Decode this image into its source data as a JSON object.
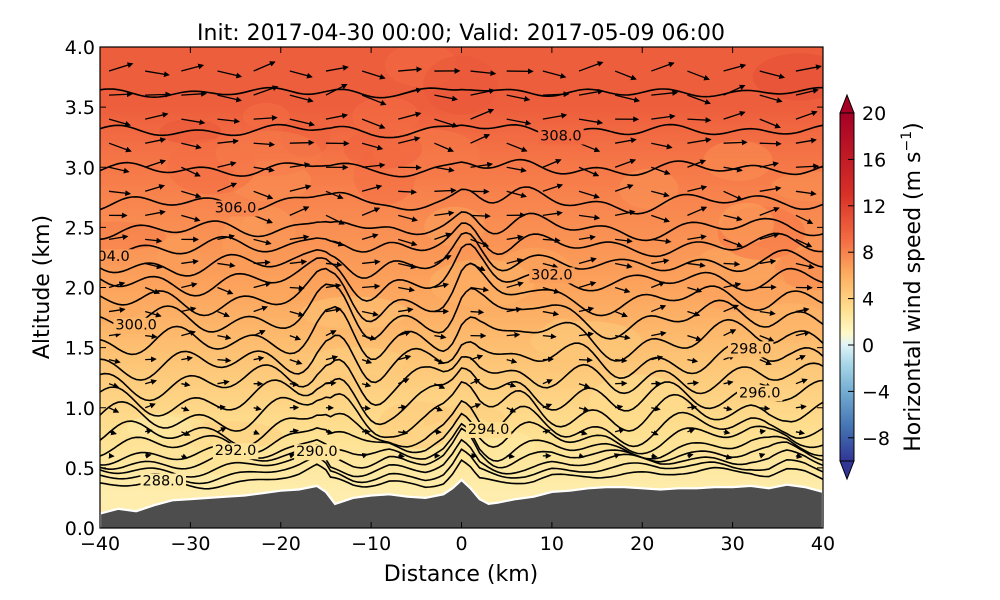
{
  "chart_data": {
    "type": "contour",
    "title": "Init: 2017-04-30 00:00; Valid: 2017-05-09 06:00",
    "xlabel": "Distance (km)",
    "ylabel": "Altitude (km)",
    "xlim": [
      -40,
      40
    ],
    "ylim": [
      0.0,
      4.0
    ],
    "xticks": [
      -40,
      -30,
      -20,
      -10,
      0,
      10,
      20,
      30,
      40
    ],
    "xtick_labels": [
      "−40",
      "−30",
      "−20",
      "−10",
      "0",
      "10",
      "20",
      "30",
      "40"
    ],
    "yticks": [
      0.0,
      0.5,
      1.0,
      1.5,
      2.0,
      2.5,
      3.0,
      3.5,
      4.0
    ],
    "ytick_labels": [
      "0.0",
      "0.5",
      "1.0",
      "1.5",
      "2.0",
      "2.5",
      "3.0",
      "3.5",
      "4.0"
    ],
    "colorbar": {
      "label": "Horizontal wind speed (m s",
      "label_unit_exp": "−1",
      "label_close": ")",
      "range": [
        -10,
        20
      ],
      "ticks": [
        20,
        16,
        12,
        8,
        4,
        0,
        -4,
        -8
      ],
      "tick_labels": [
        "20",
        "16",
        "12",
        "8",
        "4",
        "0",
        "−4",
        "−8"
      ],
      "extend": "both",
      "colormap": "RdYlBu_r",
      "stops": [
        {
          "v": -10,
          "color": "#313695"
        },
        {
          "v": -7,
          "color": "#4575b4"
        },
        {
          "v": -4,
          "color": "#74add1"
        },
        {
          "v": -1.5,
          "color": "#abd9e9"
        },
        {
          "v": 0,
          "color": "#e0f3f8"
        },
        {
          "v": 1,
          "color": "#fef9c8"
        },
        {
          "v": 3,
          "color": "#fee090"
        },
        {
          "v": 6,
          "color": "#fdae61"
        },
        {
          "v": 9,
          "color": "#f46d43"
        },
        {
          "v": 13,
          "color": "#d73027"
        },
        {
          "v": 20,
          "color": "#a50026"
        }
      ]
    },
    "wind_speed_profile": {
      "altitude_km": [
        0.3,
        0.8,
        1.5,
        2.0,
        2.5,
        3.0,
        3.5,
        4.0
      ],
      "speed_m_s": [
        2,
        3,
        5,
        6.5,
        7.5,
        8.5,
        10,
        10
      ]
    },
    "terrain": {
      "fill_color": "#4d4d4d",
      "distance_km": [
        -40,
        -38,
        -36,
        -34,
        -32,
        -30,
        -28,
        -26,
        -24,
        -22,
        -20,
        -18,
        -16,
        -15,
        -14,
        -12,
        -10,
        -8,
        -6,
        -4,
        -2,
        -1,
        0,
        1,
        2,
        3,
        4,
        6,
        8,
        10,
        12,
        14,
        16,
        18,
        20,
        22,
        24,
        26,
        28,
        30,
        32,
        34,
        36,
        38,
        40
      ],
      "altitude_km": [
        0.12,
        0.16,
        0.14,
        0.19,
        0.23,
        0.24,
        0.25,
        0.26,
        0.27,
        0.29,
        0.31,
        0.32,
        0.35,
        0.3,
        0.2,
        0.25,
        0.27,
        0.28,
        0.26,
        0.25,
        0.28,
        0.33,
        0.4,
        0.33,
        0.24,
        0.2,
        0.21,
        0.24,
        0.26,
        0.3,
        0.31,
        0.33,
        0.34,
        0.34,
        0.33,
        0.32,
        0.33,
        0.33,
        0.34,
        0.34,
        0.35,
        0.33,
        0.36,
        0.34,
        0.3
      ]
    },
    "isentropes": {
      "units": "K",
      "levels": [
        288,
        289,
        290,
        291,
        292,
        293,
        294,
        295,
        296,
        297,
        298,
        299,
        300,
        301,
        302,
        303,
        304,
        305,
        306,
        307,
        308,
        309
      ],
      "base_altitude_km": [
        0.36,
        0.42,
        0.48,
        0.54,
        0.6,
        0.69,
        0.78,
        0.91,
        1.05,
        1.2,
        1.36,
        1.54,
        1.72,
        1.88,
        2.04,
        2.18,
        2.33,
        2.48,
        2.7,
        2.98,
        3.3,
        3.62
      ],
      "wave_amplitude_km": [
        0.04,
        0.05,
        0.06,
        0.07,
        0.08,
        0.1,
        0.12,
        0.14,
        0.14,
        0.14,
        0.14,
        0.14,
        0.13,
        0.12,
        0.11,
        0.1,
        0.09,
        0.08,
        0.07,
        0.06,
        0.05,
        0.04
      ],
      "labels": [
        {
          "text": "288.0",
          "x": -33,
          "level": 288
        },
        {
          "text": "290.0",
          "x": -16,
          "level": 290
        },
        {
          "text": "292.0",
          "x": -25,
          "level": 292
        },
        {
          "text": "294.0",
          "x": 3,
          "level": 294
        },
        {
          "text": "296.0",
          "x": 33,
          "level": 296
        },
        {
          "text": "298.0",
          "x": 32,
          "level": 298
        },
        {
          "text": "300.0",
          "x": -36,
          "level": 300
        },
        {
          "text": "302.0",
          "x": 10,
          "level": 302
        },
        {
          "text": "04.0",
          "x": -38.5,
          "level": 304
        },
        {
          "text": "306.0",
          "x": -25,
          "level": 306
        },
        {
          "text": "308.0",
          "x": 11,
          "level": 308
        }
      ]
    },
    "wind_vectors": {
      "description": "",
      "grid_distance_km": [
        -39,
        -35,
        -31,
        -27,
        -23,
        -19,
        -15,
        -11,
        -7,
        -3,
        1,
        5,
        9,
        13,
        17,
        21,
        25,
        29,
        33,
        37
      ],
      "grid_altitude_km": [
        0.6,
        0.8,
        1.0,
        1.2,
        1.4,
        1.6,
        1.8,
        2.0,
        2.2,
        2.4,
        2.6,
        2.8,
        3.0,
        3.2,
        3.4,
        3.6,
        3.8
      ]
    }
  }
}
